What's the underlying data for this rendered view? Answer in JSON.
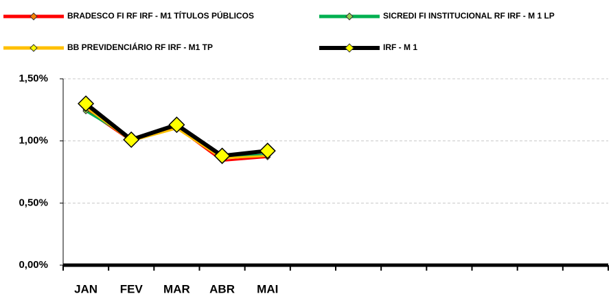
{
  "chart_data": {
    "type": "line",
    "categories": [
      "JAN",
      "FEV",
      "MAR",
      "ABR",
      "MAI",
      null,
      null,
      null,
      null,
      null,
      null,
      null
    ],
    "series": [
      {
        "name": "BRADESCO FI RF IRF - M1 TÍTULOS PÚBLICOS",
        "color": "#ff0000",
        "marker_color": "#ff8000",
        "values": [
          1.25,
          1.0,
          1.11,
          0.84,
          0.87,
          null,
          null,
          null,
          null,
          null,
          null,
          null
        ]
      },
      {
        "name": "SICREDI FI INSTITUCIONAL RF IRF - M 1 LP",
        "color": "#00b050",
        "marker_color": "#92d050",
        "values": [
          1.24,
          1.02,
          1.12,
          0.87,
          0.89,
          null,
          null,
          null,
          null,
          null,
          null,
          null
        ]
      },
      {
        "name": "BB PREVIDENCIÁRIO RF IRF - M1 TP",
        "color": "#ffc000",
        "marker_color": "#ffff00",
        "values": [
          1.27,
          1.0,
          1.1,
          0.86,
          0.88,
          null,
          null,
          null,
          null,
          null,
          null,
          null
        ]
      },
      {
        "name": "IRF - M 1",
        "color": "#000000",
        "marker_color": "#ffff00",
        "values": [
          1.3,
          1.01,
          1.13,
          0.88,
          0.92,
          null,
          null,
          null,
          null,
          null,
          null,
          null
        ]
      }
    ],
    "ylim": [
      0,
      1.5
    ],
    "yticks": [
      {
        "value": 0,
        "label": "0,00%"
      },
      {
        "value": 0.5,
        "label": "0,50%"
      },
      {
        "value": 1,
        "label": "1,00%"
      },
      {
        "value": 1.5,
        "label": "1,50%"
      }
    ],
    "grid": true
  }
}
